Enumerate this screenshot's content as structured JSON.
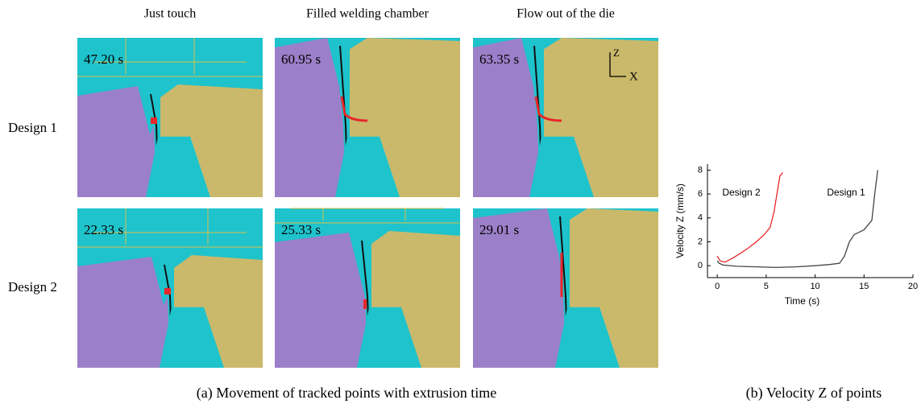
{
  "column_titles": [
    "Just touch",
    "Filled welding chamber",
    "Flow out of the die"
  ],
  "row_labels": [
    "Design 1",
    "Design 2"
  ],
  "panels": [
    [
      "47.20 s",
      "60.95 s",
      "63.35 s"
    ],
    [
      "22.33 s",
      "25.33 s",
      "29.01 s"
    ]
  ],
  "axis_indicator": {
    "z": "Z",
    "x": "X"
  },
  "captions": [
    "(a) Movement of tracked points with extrusion time",
    "(b) Velocity Z of points"
  ],
  "chart_data": {
    "type": "line",
    "xlabel": "Time (s)",
    "ylabel": "Velocity Z (mm/s)",
    "xlim": [
      -1,
      20
    ],
    "ylim": [
      -1,
      8.5
    ],
    "xticks": [
      0,
      5,
      10,
      15,
      20
    ],
    "yticks": [
      0,
      2,
      4,
      6,
      8
    ],
    "series": [
      {
        "name": "Design 2",
        "color": "#e8262b",
        "x": [
          0,
          0.3,
          0.8,
          1.5,
          2.5,
          3.2,
          4,
          4.8,
          5.4,
          5.8,
          6.1,
          6.4,
          6.7
        ],
        "values": [
          0.8,
          0.4,
          0.3,
          0.6,
          1.1,
          1.5,
          2,
          2.6,
          3.2,
          4.5,
          6,
          7.5,
          7.8
        ]
      },
      {
        "name": "Design 1",
        "color": "#444444",
        "x": [
          0,
          0.2,
          0.6,
          2,
          4,
          6,
          8,
          10,
          11.5,
          12.5,
          13,
          13.5,
          14,
          15,
          15.8,
          16.1,
          16.4
        ],
        "values": [
          0.4,
          0.2,
          0.05,
          -0.05,
          -0.1,
          -0.15,
          -0.1,
          0,
          0.1,
          0.2,
          0.8,
          2,
          2.6,
          3,
          3.8,
          6,
          8
        ]
      }
    ]
  }
}
